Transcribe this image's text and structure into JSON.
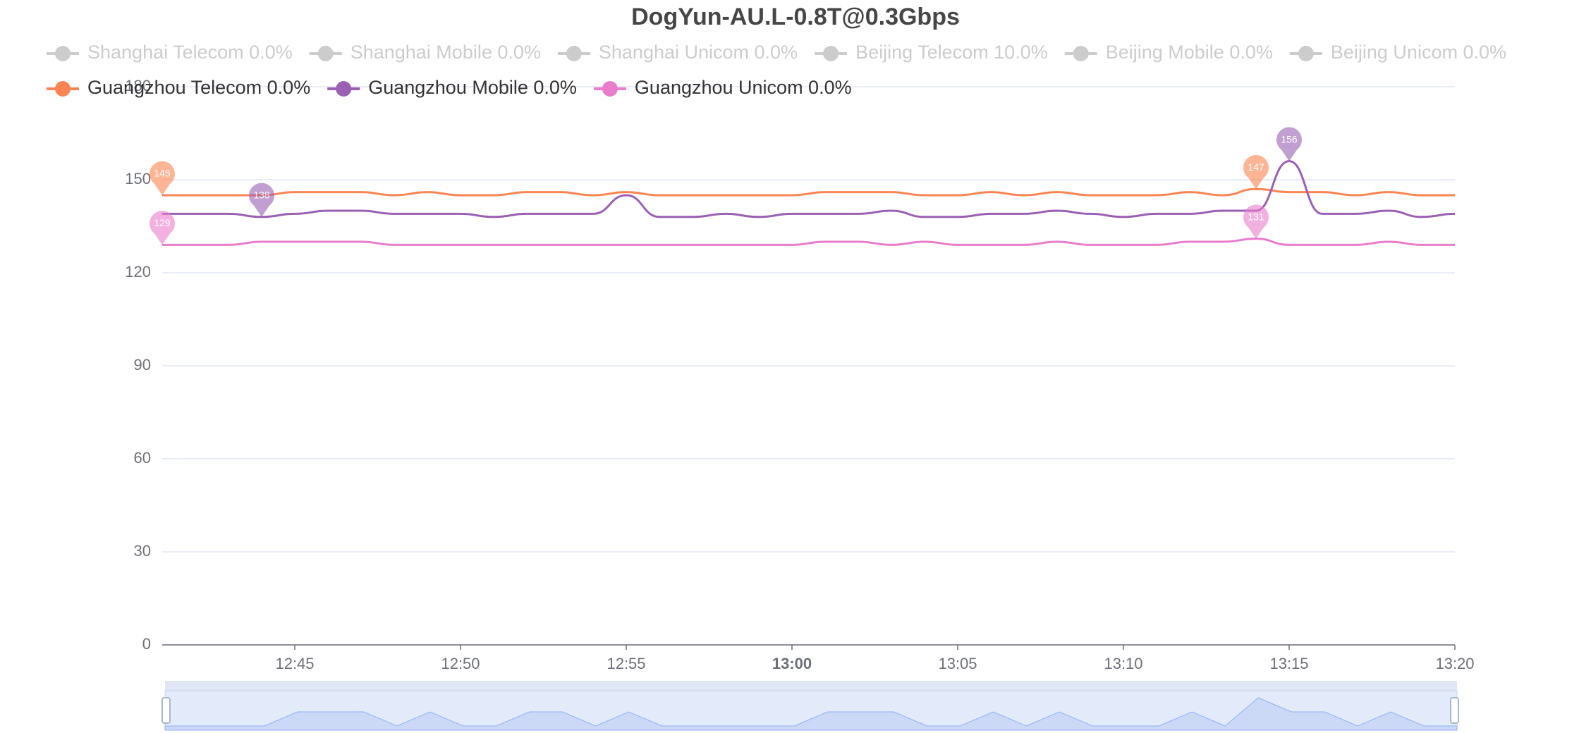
{
  "chart_data": {
    "type": "line",
    "title": "DogYun-AU.L-0.8T@0.3Gbps",
    "x": [
      "12:41",
      "12:42",
      "12:43",
      "12:44",
      "12:45",
      "12:46",
      "12:47",
      "12:48",
      "12:49",
      "12:50",
      "12:51",
      "12:52",
      "12:53",
      "12:54",
      "12:55",
      "12:56",
      "12:57",
      "12:58",
      "12:59",
      "13:00",
      "13:01",
      "13:02",
      "13:03",
      "13:04",
      "13:05",
      "13:06",
      "13:07",
      "13:08",
      "13:09",
      "13:10",
      "13:11",
      "13:12",
      "13:13",
      "13:14",
      "13:15",
      "13:16",
      "13:17",
      "13:18",
      "13:19",
      "13:20"
    ],
    "xticks": [
      "12:45",
      "12:50",
      "12:55",
      "13:00",
      "13:05",
      "13:10",
      "13:15",
      "13:20"
    ],
    "ylim": [
      0,
      180
    ],
    "yticks": [
      0,
      30,
      60,
      90,
      120,
      150,
      180
    ],
    "grid": true,
    "series": [
      {
        "name": "Shanghai Telecom 0.0%",
        "hidden": true
      },
      {
        "name": "Shanghai Mobile 0.0%",
        "hidden": true
      },
      {
        "name": "Shanghai Unicom 0.0%",
        "hidden": true
      },
      {
        "name": "Beijing Telecom 10.0%",
        "hidden": true
      },
      {
        "name": "Beijing Mobile 0.0%",
        "hidden": true
      },
      {
        "name": "Beijing Unicom 0.0%",
        "hidden": true
      },
      {
        "name": "Guangzhou Telecom 0.0%",
        "color": "#fc8452",
        "values": [
          145,
          145,
          145,
          145,
          146,
          146,
          146,
          145,
          146,
          145,
          145,
          146,
          146,
          145,
          146,
          145,
          145,
          145,
          145,
          145,
          146,
          146,
          146,
          145,
          145,
          146,
          145,
          146,
          145,
          145,
          145,
          146,
          145,
          147,
          146,
          146,
          145,
          146,
          145,
          145
        ]
      },
      {
        "name": "Guangzhou Mobile 0.0%",
        "color": "#9a60b4",
        "values": [
          139,
          139,
          139,
          138,
          139,
          140,
          140,
          139,
          139,
          139,
          138,
          139,
          139,
          139,
          145,
          138,
          138,
          139,
          138,
          139,
          139,
          139,
          140,
          138,
          138,
          139,
          139,
          140,
          139,
          138,
          139,
          139,
          140,
          140,
          156,
          139,
          139,
          140,
          138,
          139
        ]
      },
      {
        "name": "Guangzhou Unicom 0.0%",
        "color": "#ea7ccc",
        "values": [
          129,
          129,
          129,
          130,
          130,
          130,
          130,
          129,
          129,
          129,
          129,
          129,
          129,
          129,
          129,
          129,
          129,
          129,
          129,
          129,
          130,
          130,
          129,
          130,
          129,
          129,
          129,
          130,
          129,
          129,
          129,
          130,
          130,
          131,
          129,
          129,
          129,
          130,
          129,
          129
        ]
      }
    ]
  }
}
